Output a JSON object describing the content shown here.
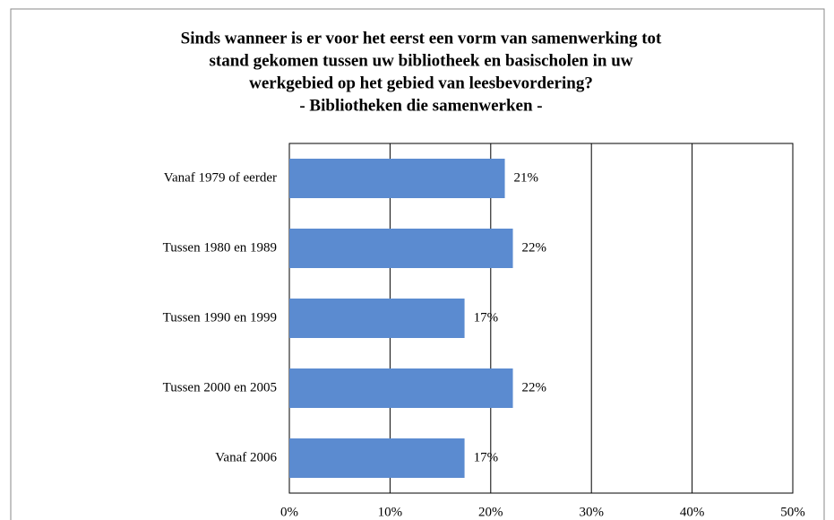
{
  "chart_data": {
    "type": "hbar",
    "title_lines": [
      "Sinds wanneer is er voor het eerst een vorm van samenwerking tot",
      "stand gekomen tussen uw bibliotheek en basischolen in uw",
      "werkgebied op het gebied van leesbevordering?"
    ],
    "subtitle": "- Bibliotheken die samenwerken -",
    "categories": [
      "Vanaf 1979 of eerder",
      "Tussen 1980 en 1989",
      "Tussen 1990 en 1999",
      "Tussen 2000 en 2005",
      "Vanaf 2006"
    ],
    "values": [
      21.4,
      22.2,
      17.4,
      22.2,
      17.4
    ],
    "value_labels": [
      "21%",
      "22%",
      "17%",
      "22%",
      "17%"
    ],
    "color": "#5b8bd0",
    "xlim": [
      0,
      50
    ],
    "xticks": [
      {
        "value": 0,
        "label": "0%"
      },
      {
        "value": 10,
        "label": "10%"
      },
      {
        "value": 20,
        "label": "20%"
      },
      {
        "value": 30,
        "label": "30%"
      },
      {
        "value": 40,
        "label": "40%"
      },
      {
        "value": 50,
        "label": "50%"
      }
    ],
    "grid": true
  }
}
